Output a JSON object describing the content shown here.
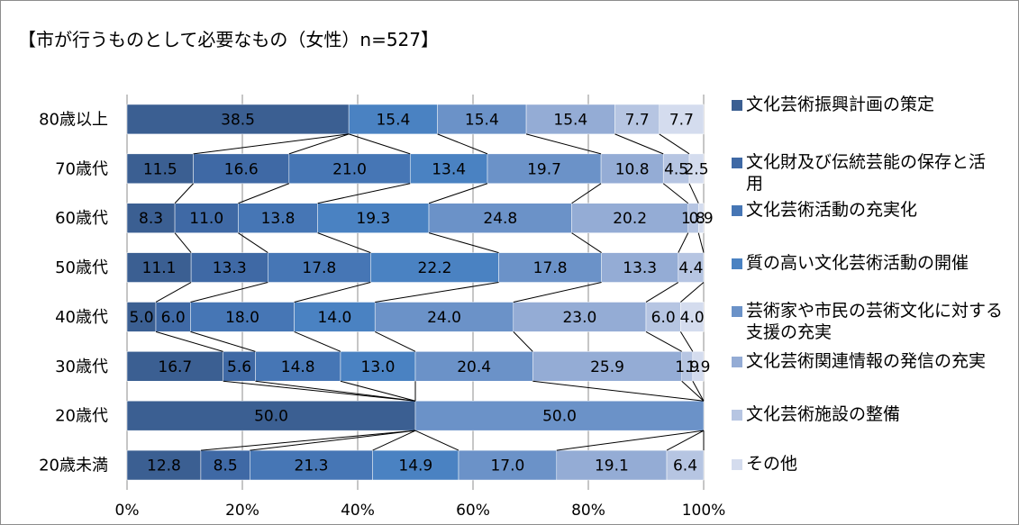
{
  "chart_data": {
    "type": "bar",
    "orientation": "horizontal",
    "stacked": "percent",
    "title": "【市が行うものとして必要なもの（女性）n=527】",
    "categories": [
      "80歳以上",
      "70歳代",
      "60歳代",
      "50歳代",
      "40歳代",
      "30歳代",
      "20歳代",
      "20歳未満"
    ],
    "xlim": [
      0,
      100
    ],
    "x_ticks": [
      "0%",
      "20%",
      "40%",
      "60%",
      "80%",
      "100%"
    ],
    "grid": true,
    "series_lines": true,
    "legend_position": "right",
    "series": [
      {
        "name": "文化芸術振興計画の策定",
        "color": "#3b5f92",
        "values": [
          38.5,
          11.5,
          8.3,
          11.1,
          5.0,
          16.7,
          50.0,
          12.8
        ]
      },
      {
        "name": "文化財及び伝統芸能の保存と活用",
        "color": "#3f69a5",
        "values": [
          0,
          16.6,
          11.0,
          13.3,
          6.0,
          5.6,
          0,
          8.5
        ]
      },
      {
        "name": "文化芸術活動の充実化",
        "color": "#4676b5",
        "values": [
          0,
          21.0,
          13.8,
          17.8,
          18.0,
          14.8,
          0,
          21.3
        ]
      },
      {
        "name": "質の高い文化芸術活動の開催",
        "color": "#4a82c2",
        "values": [
          15.4,
          13.4,
          19.3,
          22.2,
          14.0,
          13.0,
          0,
          14.9
        ]
      },
      {
        "name": "芸術家や市民の芸術文化に対する支援の充実",
        "color": "#6b92c8",
        "values": [
          15.4,
          19.7,
          24.8,
          17.8,
          24.0,
          20.4,
          50.0,
          17.0
        ]
      },
      {
        "name": "文化芸術関連情報の発信の充実",
        "color": "#94acd5",
        "values": [
          15.4,
          10.8,
          20.2,
          13.3,
          23.0,
          25.9,
          0,
          19.1
        ]
      },
      {
        "name": "文化芸術施設の整備",
        "color": "#b6c5e2",
        "values": [
          7.7,
          4.5,
          1.8,
          4.4,
          6.0,
          1.9,
          0,
          6.4
        ]
      },
      {
        "name": "その他",
        "color": "#d4dcee",
        "values": [
          7.7,
          2.5,
          0.9,
          0,
          4.0,
          1.9,
          0,
          0
        ]
      }
    ]
  }
}
